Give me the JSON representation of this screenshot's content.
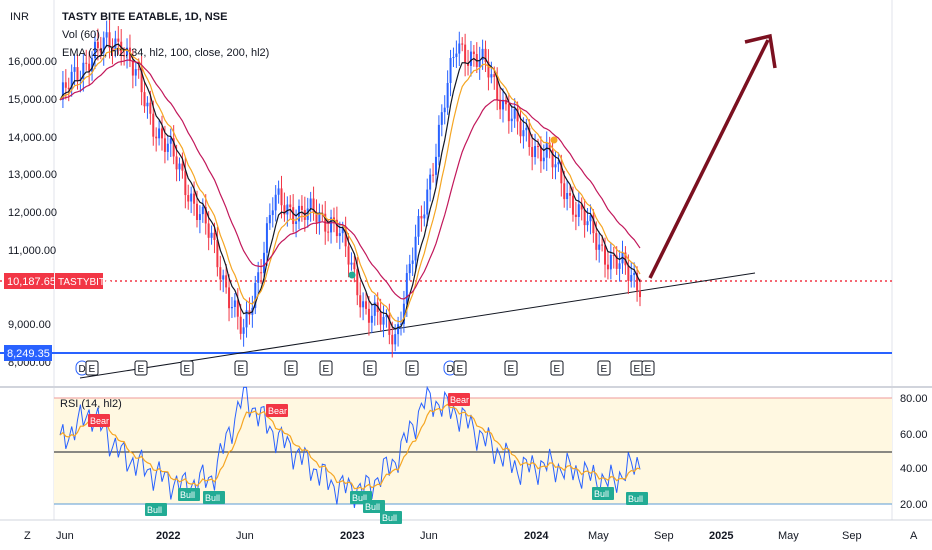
{
  "header": {
    "currency": "INR",
    "symbol_line": "TASTY BITE EATABLE, 1D, NSE",
    "volume_label": "Vol (60)",
    "ema_label": "EMA (21, hl2, 34, hl2, 100, close, 200, hl2)",
    "rsi_label": "RSI (14, hl2)"
  },
  "price_axis": {
    "ticks": [
      "16,000.00",
      "15,000.00",
      "14,000.00",
      "13,000.00",
      "12,000.00",
      "11,000.00",
      "9,000.00",
      "8,000.00"
    ],
    "last_price": "10,187.65",
    "ticker_badge": "TASTYBITE",
    "level_price": "8,249.35"
  },
  "rsi_axis": {
    "ticks": [
      "80.00",
      "60.00",
      "40.00",
      "20.00"
    ]
  },
  "time_axis": {
    "labels": [
      "Jun",
      "2022",
      "Jun",
      "2023",
      "Jun",
      "2024",
      "May",
      "Sep",
      "2025",
      "May",
      "Sep"
    ]
  },
  "corner_buttons": {
    "left": "Z",
    "right": "A"
  },
  "event_markers": [
    "D",
    "E",
    "E",
    "E",
    "E",
    "E",
    "E",
    "E",
    "E",
    "D",
    "E",
    "E",
    "E",
    "E",
    "E",
    "E"
  ],
  "signals": {
    "bear": "Bear",
    "bull": "Bull"
  },
  "colors": {
    "candle_up": "#2962ff",
    "candle_down": "#f23645",
    "ema21": "#131722",
    "ema34": "#f5a623",
    "ema100": "#c2185b",
    "ema200": "#b71c1c",
    "rsi": "#2962ff",
    "rsi_ma": "#f5a623",
    "arrow": "#7b1020",
    "bear_badge": "#f23645",
    "bull_badge": "#22ab94",
    "rsi_band": "#fff8e1"
  },
  "chart_data": [
    {
      "type": "line",
      "title": "TASTY BITE EATABLE, 1D, NSE",
      "x": [
        "2021-06",
        "2021-08",
        "2021-10",
        "2021-12",
        "2022-02",
        "2022-04",
        "2022-06",
        "2022-08",
        "2022-10",
        "2022-12",
        "2023-02",
        "2023-04",
        "2023-06",
        "2023-08",
        "2023-10",
        "2023-12",
        "2024-02",
        "2024-04",
        "2024-06",
        "2024-07"
      ],
      "series": [
        {
          "name": "Price",
          "values": [
            15000,
            16200,
            16600,
            14500,
            13000,
            11200,
            8700,
            12300,
            12000,
            11800,
            9500,
            8800,
            12500,
            16500,
            15800,
            14200,
            13500,
            12000,
            10800,
            10187.65
          ]
        }
      ],
      "ylim": [
        8000,
        16800
      ],
      "annotations": [
        "10,187.65",
        "8,249.35",
        "Bear",
        "Bull"
      ]
    },
    {
      "type": "line",
      "title": "RSI (14, hl2)",
      "x": [
        "2021-06",
        "2021-08",
        "2021-10",
        "2021-12",
        "2022-02",
        "2022-04",
        "2022-06",
        "2022-08",
        "2022-10",
        "2022-12",
        "2023-02",
        "2023-04",
        "2023-06",
        "2023-08",
        "2023-10",
        "2023-12",
        "2024-02",
        "2024-04",
        "2024-06",
        "2024-07"
      ],
      "series": [
        {
          "name": "RSI",
          "values": [
            55,
            72,
            48,
            38,
            30,
            35,
            82,
            60,
            45,
            30,
            28,
            45,
            80,
            72,
            55,
            40,
            42,
            38,
            32,
            44
          ]
        }
      ],
      "ylim": [
        15,
        85
      ]
    }
  ]
}
